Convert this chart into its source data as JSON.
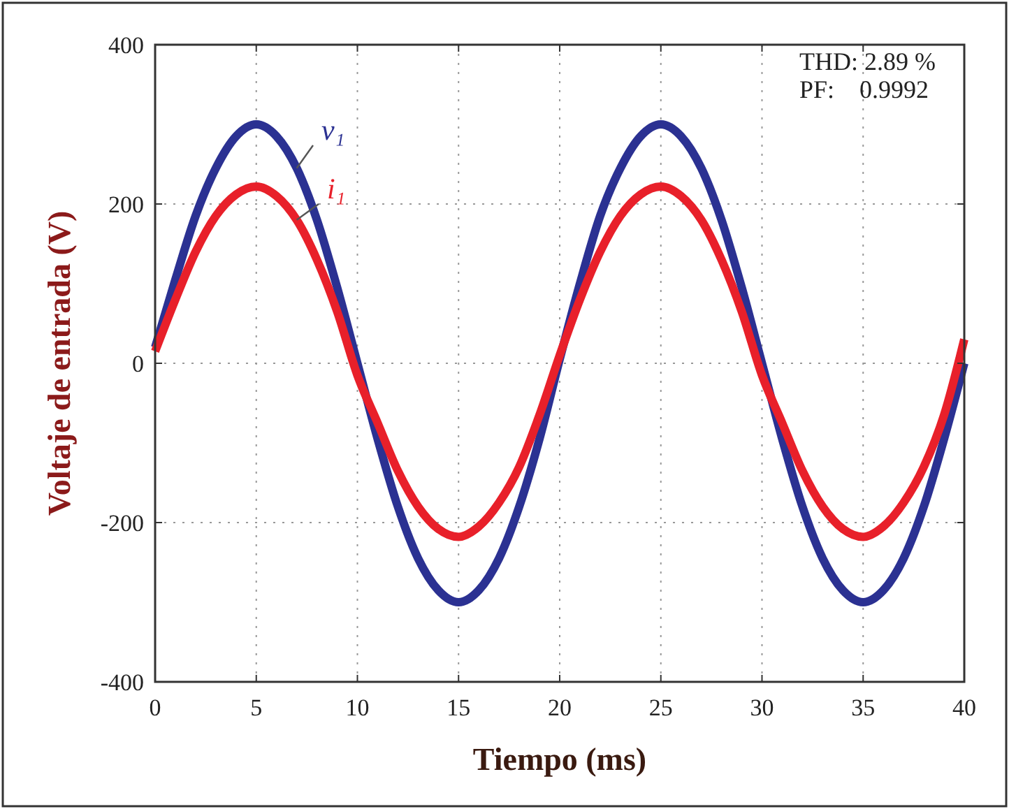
{
  "chart_data": {
    "type": "line",
    "xlabel": "Tiempo (ms)",
    "ylabel": "Voltaje de entrada (V)",
    "x": [
      0,
      1,
      2,
      3,
      4,
      5,
      6,
      7,
      8,
      9,
      10,
      11,
      12,
      13,
      14,
      15,
      16,
      17,
      18,
      19,
      20,
      21,
      22,
      23,
      24,
      25,
      26,
      27,
      28,
      29,
      30,
      31,
      32,
      33,
      34,
      35,
      36,
      37,
      38,
      39,
      40
    ],
    "series": [
      {
        "name": "v₁",
        "color": "#2b3192",
        "values": [
          20,
          105,
          185,
          245,
          285,
          300,
          285,
          245,
          180,
          95,
          0,
          -95,
          -180,
          -245,
          -285,
          -300,
          -285,
          -245,
          -180,
          -95,
          5,
          100,
          185,
          245,
          285,
          300,
          285,
          245,
          180,
          95,
          0,
          -95,
          -180,
          -245,
          -285,
          -300,
          -285,
          -245,
          -180,
          -95,
          0
        ]
      },
      {
        "name": "i₁",
        "color": "#e8202a",
        "values": [
          15,
          80,
          140,
          185,
          212,
          222,
          210,
          180,
          130,
          65,
          -15,
          -75,
          -135,
          -180,
          -208,
          -218,
          -205,
          -175,
          -130,
          -65,
          10,
          80,
          140,
          185,
          212,
          222,
          210,
          180,
          130,
          65,
          -15,
          -75,
          -135,
          -180,
          -208,
          -218,
          -205,
          -175,
          -130,
          -65,
          30
        ]
      }
    ],
    "xlim": [
      0,
      40
    ],
    "ylim": [
      -400,
      400
    ],
    "xticks": [
      0,
      5,
      10,
      15,
      20,
      25,
      30,
      35,
      40
    ],
    "yticks": [
      -400,
      -200,
      0,
      200,
      400
    ],
    "grid": true,
    "line_style": "solid",
    "marker": "none",
    "annotations": [
      "THD: 2.89 %",
      "PF:    0.9992"
    ]
  }
}
